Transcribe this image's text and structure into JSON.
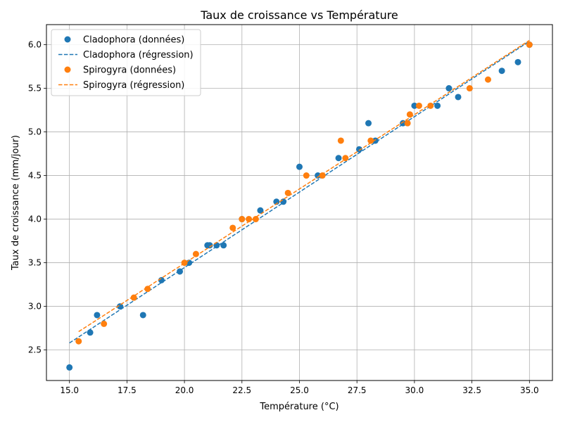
{
  "chart_data": {
    "type": "scatter",
    "title": "Taux de croissance vs Température",
    "xlabel": "Température (°C)",
    "ylabel": "Taux de croissance (mm/jour)",
    "xlim": [
      14.0,
      36.0
    ],
    "ylim": [
      2.15,
      6.23
    ],
    "xticks": [
      15.0,
      17.5,
      20.0,
      22.5,
      25.0,
      27.5,
      30.0,
      32.5,
      35.0
    ],
    "xtick_labels": [
      "15.0",
      "17.5",
      "20.0",
      "22.5",
      "25.0",
      "27.5",
      "30.0",
      "32.5",
      "35.0"
    ],
    "yticks": [
      2.5,
      3.0,
      3.5,
      4.0,
      4.5,
      5.0,
      5.5,
      6.0
    ],
    "ytick_labels": [
      "2.5",
      "3.0",
      "3.5",
      "4.0",
      "4.5",
      "5.0",
      "5.5",
      "6.0"
    ],
    "grid": true,
    "legend_position": "top-left",
    "series": [
      {
        "name": "Cladophora (données)",
        "kind": "scatter",
        "color": "#1f77b4",
        "points": [
          [
            15.0,
            2.3
          ],
          [
            15.9,
            2.7
          ],
          [
            16.2,
            2.9
          ],
          [
            17.2,
            3.0
          ],
          [
            18.2,
            2.9
          ],
          [
            19.0,
            3.3
          ],
          [
            19.8,
            3.4
          ],
          [
            20.2,
            3.5
          ],
          [
            21.0,
            3.7
          ],
          [
            21.1,
            3.7
          ],
          [
            21.4,
            3.7
          ],
          [
            21.7,
            3.7
          ],
          [
            22.5,
            4.0
          ],
          [
            23.3,
            4.1
          ],
          [
            24.0,
            4.2
          ],
          [
            24.3,
            4.2
          ],
          [
            25.0,
            4.6
          ],
          [
            25.8,
            4.5
          ],
          [
            26.7,
            4.7
          ],
          [
            27.6,
            4.8
          ],
          [
            28.0,
            5.1
          ],
          [
            28.3,
            4.9
          ],
          [
            29.5,
            5.1
          ],
          [
            30.0,
            5.3
          ],
          [
            31.0,
            5.3
          ],
          [
            31.5,
            5.5
          ],
          [
            31.9,
            5.4
          ],
          [
            33.8,
            5.7
          ],
          [
            34.5,
            5.8
          ],
          [
            35.0,
            6.0
          ]
        ]
      },
      {
        "name": "Cladophora (régression)",
        "kind": "line",
        "color": "#1f77b4",
        "points": [
          [
            15.0,
            2.58
          ],
          [
            35.0,
            6.04
          ]
        ]
      },
      {
        "name": "Spirogyra (données)",
        "kind": "scatter",
        "color": "#ff7f0e",
        "points": [
          [
            15.4,
            2.6
          ],
          [
            16.5,
            2.8
          ],
          [
            17.8,
            3.1
          ],
          [
            18.4,
            3.2
          ],
          [
            20.0,
            3.5
          ],
          [
            20.5,
            3.6
          ],
          [
            22.1,
            3.9
          ],
          [
            22.5,
            4.0
          ],
          [
            22.8,
            4.0
          ],
          [
            23.1,
            4.0
          ],
          [
            24.5,
            4.3
          ],
          [
            25.3,
            4.5
          ],
          [
            26.0,
            4.5
          ],
          [
            26.8,
            4.9
          ],
          [
            27.0,
            4.7
          ],
          [
            28.1,
            4.9
          ],
          [
            29.7,
            5.1
          ],
          [
            29.8,
            5.2
          ],
          [
            30.2,
            5.3
          ],
          [
            30.7,
            5.3
          ],
          [
            32.4,
            5.5
          ],
          [
            33.2,
            5.6
          ],
          [
            35.0,
            6.0
          ]
        ]
      },
      {
        "name": "Spirogyra (régression)",
        "kind": "line",
        "color": "#ff7f0e",
        "points": [
          [
            15.4,
            2.71
          ],
          [
            35.0,
            6.05
          ]
        ]
      }
    ]
  }
}
